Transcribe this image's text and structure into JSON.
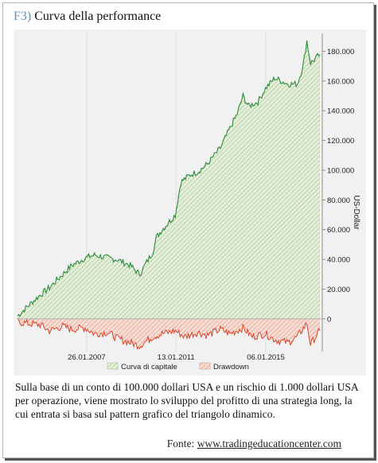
{
  "title": {
    "prefix": "F3)",
    "text": "Curva della performance"
  },
  "caption": "Sulla base di un conto di 100.000 dollari USA e un rischio di 1.000 dollari USA per operazione, viene mostrato lo sviluppo del profitto di una strategia long, la cui entrata si basa sul pattern grafico del triangolo dinamico.",
  "source": {
    "label": "Fonte:",
    "link": "www.tradingeducationcenter.com"
  },
  "colors": {
    "equity_line": "#2f8a3a",
    "equity_fill": "#b9d9a6",
    "drawdown_line": "#d9452b",
    "drawdown_fill": "#f2b8a8"
  },
  "chart_data": {
    "type": "area",
    "ylabel": "US-Dollar",
    "y_axis_position": "right",
    "ylim": [
      -22000,
      192000
    ],
    "y_ticks": [
      0,
      20000,
      40000,
      60000,
      80000,
      100000,
      120000,
      140000,
      160000,
      180000
    ],
    "y_tick_labels": [
      "0",
      "20.000",
      "40.000",
      "60.000",
      "80.000",
      "100.000",
      "120.000",
      "140.000",
      "160.000",
      "180.000"
    ],
    "x_tick_labels": [
      "26.01.2007",
      "13.01.2011",
      "06.01.2015"
    ],
    "x_tick_dates": [
      "2007-01-26",
      "2011-01-13",
      "2015-01-06"
    ],
    "xlim": [
      "2004-01-01",
      "2017-06-01"
    ],
    "legend_position": "bottom",
    "series": [
      {
        "name": "Curva di capitale",
        "type": "area",
        "points": [
          [
            "2004-01-01",
            2000
          ],
          [
            "2004-06-01",
            8000
          ],
          [
            "2005-01-01",
            16000
          ],
          [
            "2005-06-01",
            21000
          ],
          [
            "2006-01-01",
            30000
          ],
          [
            "2006-06-01",
            36000
          ],
          [
            "2007-01-01",
            41000
          ],
          [
            "2007-06-01",
            43000
          ],
          [
            "2008-01-01",
            41000
          ],
          [
            "2008-06-01",
            40000
          ],
          [
            "2009-01-01",
            36000
          ],
          [
            "2009-06-01",
            30000
          ],
          [
            "2010-01-01",
            45000
          ],
          [
            "2010-03-01",
            55000
          ],
          [
            "2010-06-01",
            60000
          ],
          [
            "2011-01-01",
            70000
          ],
          [
            "2011-04-01",
            92000
          ],
          [
            "2011-09-01",
            97000
          ],
          [
            "2012-01-01",
            99000
          ],
          [
            "2012-06-01",
            104000
          ],
          [
            "2013-01-01",
            115000
          ],
          [
            "2013-06-01",
            128000
          ],
          [
            "2013-10-01",
            138000
          ],
          [
            "2014-01-01",
            150000
          ],
          [
            "2014-04-01",
            143000
          ],
          [
            "2014-09-01",
            146000
          ],
          [
            "2015-01-01",
            155000
          ],
          [
            "2015-06-01",
            162000
          ],
          [
            "2016-01-01",
            158000
          ],
          [
            "2016-06-01",
            158000
          ],
          [
            "2016-09-01",
            170000
          ],
          [
            "2016-11-01",
            187000
          ],
          [
            "2017-01-01",
            172000
          ],
          [
            "2017-06-01",
            178000
          ]
        ]
      },
      {
        "name": "Drawdown",
        "type": "area",
        "points": [
          [
            "2004-01-01",
            -2000
          ],
          [
            "2004-06-01",
            -3000
          ],
          [
            "2005-01-01",
            -4000
          ],
          [
            "2005-06-01",
            -8000
          ],
          [
            "2006-01-01",
            -5000
          ],
          [
            "2006-06-01",
            -7000
          ],
          [
            "2007-01-01",
            -6000
          ],
          [
            "2007-06-01",
            -10000
          ],
          [
            "2008-01-01",
            -9000
          ],
          [
            "2008-06-01",
            -13000
          ],
          [
            "2009-01-01",
            -16000
          ],
          [
            "2009-06-01",
            -18000
          ],
          [
            "2010-01-01",
            -12000
          ],
          [
            "2010-06-01",
            -10000
          ],
          [
            "2011-01-01",
            -8000
          ],
          [
            "2011-06-01",
            -12000
          ],
          [
            "2012-01-01",
            -9000
          ],
          [
            "2012-06-01",
            -11000
          ],
          [
            "2013-01-01",
            -7000
          ],
          [
            "2013-06-01",
            -10000
          ],
          [
            "2014-01-01",
            -6000
          ],
          [
            "2014-06-01",
            -12000
          ],
          [
            "2015-01-01",
            -10000
          ],
          [
            "2015-06-01",
            -14000
          ],
          [
            "2016-01-01",
            -16000
          ],
          [
            "2016-06-01",
            -12000
          ],
          [
            "2016-11-01",
            -3000
          ],
          [
            "2017-01-01",
            -17000
          ],
          [
            "2017-06-01",
            -8000
          ]
        ]
      }
    ]
  }
}
